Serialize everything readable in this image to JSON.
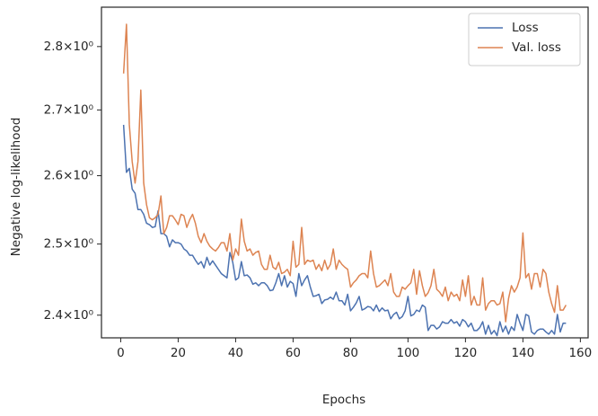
{
  "chart_data": {
    "type": "line",
    "yscale": "log",
    "grid": false,
    "legend": "upper right",
    "xlabel": "Epochs",
    "ylabel": "Negative log-likelihood",
    "xlim": [
      -6.7,
      162.7
    ],
    "ylim": [
      2.369,
      2.864
    ],
    "xticks": [
      0,
      20,
      40,
      60,
      80,
      100,
      120,
      140,
      160
    ],
    "yticks": [
      {
        "value": 2.4,
        "label": "2.4×10⁰"
      },
      {
        "value": 2.5,
        "label": "2.5×10⁰"
      },
      {
        "value": 2.6,
        "label": "2.6×10⁰"
      },
      {
        "value": 2.7,
        "label": "2.7×10⁰"
      },
      {
        "value": 2.8,
        "label": "2.8×10⁰"
      }
    ],
    "x": [
      1,
      2,
      3,
      4,
      5,
      6,
      7,
      8,
      9,
      10,
      11,
      12,
      13,
      14,
      15,
      16,
      17,
      18,
      19,
      20,
      21,
      22,
      23,
      24,
      25,
      26,
      27,
      28,
      29,
      30,
      31,
      32,
      33,
      34,
      35,
      36,
      37,
      38,
      39,
      40,
      41,
      42,
      43,
      44,
      45,
      46,
      47,
      48,
      49,
      50,
      51,
      52,
      53,
      54,
      55,
      56,
      57,
      58,
      59,
      60,
      61,
      62,
      63,
      64,
      65,
      66,
      67,
      68,
      69,
      70,
      71,
      72,
      73,
      74,
      75,
      76,
      77,
      78,
      79,
      80,
      81,
      82,
      83,
      84,
      85,
      86,
      87,
      88,
      89,
      90,
      91,
      92,
      93,
      94,
      95,
      96,
      97,
      98,
      99,
      100,
      101,
      102,
      103,
      104,
      105,
      106,
      107,
      108,
      109,
      110,
      111,
      112,
      113,
      114,
      115,
      116,
      117,
      118,
      119,
      120,
      121,
      122,
      123,
      124,
      125,
      126,
      127,
      128,
      129,
      130,
      131,
      132,
      133,
      134,
      135,
      136,
      137,
      138,
      139,
      140,
      141,
      142,
      143,
      144,
      145,
      146,
      147,
      148,
      149,
      150,
      151,
      152,
      153,
      154,
      155
    ],
    "series": [
      {
        "name": "Loss",
        "color": "#4c72b0",
        "values": [
          2.677,
          2.605,
          2.611,
          2.58,
          2.574,
          2.55,
          2.55,
          2.543,
          2.53,
          2.528,
          2.524,
          2.525,
          2.548,
          2.515,
          2.515,
          2.511,
          2.496,
          2.506,
          2.502,
          2.502,
          2.5,
          2.493,
          2.49,
          2.484,
          2.484,
          2.477,
          2.471,
          2.475,
          2.466,
          2.481,
          2.47,
          2.476,
          2.47,
          2.464,
          2.458,
          2.455,
          2.452,
          2.488,
          2.474,
          2.449,
          2.452,
          2.475,
          2.455,
          2.456,
          2.452,
          2.443,
          2.445,
          2.441,
          2.445,
          2.445,
          2.441,
          2.434,
          2.435,
          2.445,
          2.458,
          2.441,
          2.455,
          2.439,
          2.447,
          2.444,
          2.426,
          2.458,
          2.441,
          2.449,
          2.455,
          2.439,
          2.426,
          2.427,
          2.429,
          2.416,
          2.421,
          2.422,
          2.425,
          2.422,
          2.432,
          2.42,
          2.42,
          2.414,
          2.429,
          2.406,
          2.411,
          2.417,
          2.426,
          2.407,
          2.409,
          2.412,
          2.411,
          2.406,
          2.414,
          2.405,
          2.41,
          2.406,
          2.407,
          2.395,
          2.401,
          2.404,
          2.395,
          2.398,
          2.406,
          2.426,
          2.399,
          2.401,
          2.407,
          2.405,
          2.414,
          2.411,
          2.379,
          2.386,
          2.386,
          2.381,
          2.384,
          2.391,
          2.389,
          2.389,
          2.394,
          2.389,
          2.391,
          2.385,
          2.394,
          2.391,
          2.384,
          2.389,
          2.379,
          2.379,
          2.383,
          2.391,
          2.374,
          2.386,
          2.374,
          2.379,
          2.372,
          2.391,
          2.377,
          2.385,
          2.374,
          2.384,
          2.379,
          2.401,
          2.389,
          2.379,
          2.401,
          2.399,
          2.377,
          2.374,
          2.379,
          2.381,
          2.381,
          2.377,
          2.374,
          2.379,
          2.374,
          2.401,
          2.377,
          2.389,
          2.389
        ]
      },
      {
        "name": "Val. loss",
        "color": "#dd8452",
        "values": [
          2.757,
          2.836,
          2.677,
          2.621,
          2.589,
          2.621,
          2.731,
          2.589,
          2.557,
          2.538,
          2.535,
          2.538,
          2.543,
          2.57,
          2.515,
          2.524,
          2.541,
          2.541,
          2.535,
          2.528,
          2.543,
          2.541,
          2.524,
          2.535,
          2.543,
          2.53,
          2.511,
          2.502,
          2.515,
          2.504,
          2.497,
          2.493,
          2.49,
          2.495,
          2.502,
          2.502,
          2.49,
          2.515,
          2.477,
          2.493,
          2.484,
          2.536,
          2.504,
          2.49,
          2.493,
          2.484,
          2.488,
          2.49,
          2.471,
          2.464,
          2.464,
          2.484,
          2.467,
          2.464,
          2.474,
          2.458,
          2.46,
          2.464,
          2.455,
          2.504,
          2.467,
          2.471,
          2.524,
          2.471,
          2.477,
          2.475,
          2.477,
          2.464,
          2.471,
          2.462,
          2.477,
          2.464,
          2.471,
          2.493,
          2.464,
          2.477,
          2.471,
          2.467,
          2.464,
          2.439,
          2.445,
          2.449,
          2.455,
          2.458,
          2.458,
          2.452,
          2.49,
          2.458,
          2.439,
          2.441,
          2.445,
          2.449,
          2.441,
          2.458,
          2.432,
          2.426,
          2.426,
          2.439,
          2.436,
          2.441,
          2.445,
          2.464,
          2.429,
          2.462,
          2.441,
          2.426,
          2.431,
          2.441,
          2.464,
          2.436,
          2.432,
          2.426,
          2.439,
          2.42,
          2.432,
          2.426,
          2.429,
          2.42,
          2.449,
          2.426,
          2.455,
          2.414,
          2.426,
          2.414,
          2.414,
          2.452,
          2.407,
          2.416,
          2.42,
          2.42,
          2.414,
          2.416,
          2.432,
          2.391,
          2.423,
          2.441,
          2.432,
          2.439,
          2.452,
          2.516,
          2.452,
          2.458,
          2.436,
          2.458,
          2.458,
          2.439,
          2.464,
          2.458,
          2.432,
          2.416,
          2.404,
          2.441,
          2.407,
          2.407,
          2.414
        ]
      }
    ]
  }
}
